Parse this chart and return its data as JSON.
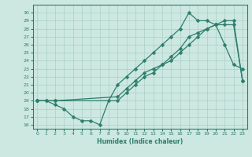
{
  "xlabel": "Humidex (Indice chaleur)",
  "line_color": "#2e7d6e",
  "bg_color": "#cce8e0",
  "grid_color": "#aacfc8",
  "line1_x": [
    0,
    1,
    2,
    3,
    4,
    5,
    6,
    7,
    8,
    9,
    10,
    11,
    12,
    13,
    14,
    15,
    16,
    17,
    18,
    19,
    20,
    21,
    22,
    23
  ],
  "line1_y": [
    19,
    19,
    18.5,
    18,
    17,
    16.5,
    16.5,
    16,
    19,
    21,
    22,
    23,
    24,
    25,
    26,
    27,
    28,
    30,
    29,
    29,
    28.5,
    26,
    23.5,
    23
  ],
  "line2_x": [
    0,
    1,
    2,
    9,
    10,
    11,
    12,
    13,
    14,
    15,
    16,
    17,
    18,
    19,
    20,
    21,
    22,
    23
  ],
  "line2_y": [
    19,
    19,
    19,
    19,
    20,
    21,
    22,
    22.5,
    23.5,
    24.5,
    25.5,
    27,
    27.5,
    28,
    28.5,
    29,
    29,
    21.5
  ],
  "line3_x": [
    0,
    2,
    9,
    10,
    11,
    12,
    13,
    14,
    15,
    16,
    17,
    18,
    19,
    20,
    21,
    22,
    23
  ],
  "line3_y": [
    19,
    19,
    19.5,
    20.5,
    21.5,
    22.5,
    23,
    23.5,
    24,
    25,
    26,
    27,
    28,
    28.5,
    28.5,
    28.5,
    21.5
  ],
  "ylim": [
    15.5,
    31
  ],
  "xlim": [
    -0.5,
    23.5
  ],
  "yticks": [
    16,
    17,
    18,
    19,
    20,
    21,
    22,
    23,
    24,
    25,
    26,
    27,
    28,
    29,
    30
  ],
  "xticks": [
    0,
    1,
    2,
    3,
    4,
    5,
    6,
    7,
    8,
    9,
    10,
    11,
    12,
    13,
    14,
    15,
    16,
    17,
    18,
    19,
    20,
    21,
    22,
    23
  ]
}
